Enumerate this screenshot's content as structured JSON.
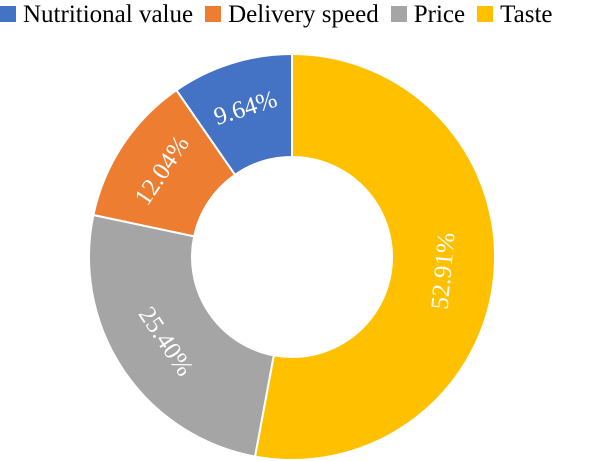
{
  "chart_data": {
    "type": "pie",
    "donut": true,
    "categories": [
      "Nutritional value",
      "Delivery speed",
      "Price",
      "Taste"
    ],
    "values": [
      9.64,
      12.04,
      25.4,
      52.91
    ],
    "value_labels": [
      "9.64%",
      "12.04%",
      "25.40%",
      "52.91%"
    ],
    "colors": [
      "#4472C4",
      "#ED7D31",
      "#A5A5A5",
      "#FFC000"
    ],
    "legend_position": "top",
    "title": ""
  }
}
